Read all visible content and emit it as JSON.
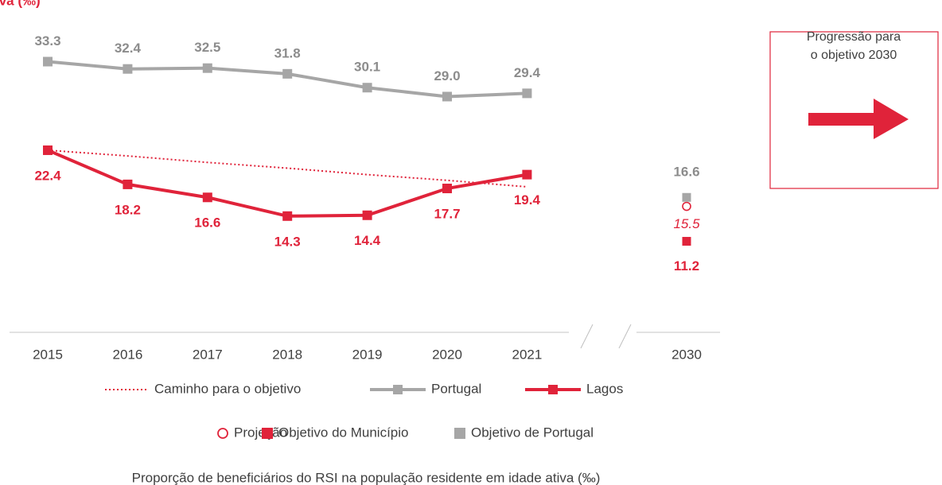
{
  "chart_data": {
    "type": "line",
    "title": "iva (‰)",
    "caption": "Proporção de beneficiários do RSI na população residente em idade ativa (‰)",
    "annotation": [
      "Progressão para",
      "o objetivo 2030"
    ],
    "categories": [
      "2015",
      "2016",
      "2017",
      "2018",
      "2019",
      "2020",
      "2021",
      "2030"
    ],
    "ylim": [
      0,
      40
    ],
    "series": [
      {
        "name": "Caminho para o objetivo",
        "color": "#e0233a",
        "style": "dotted",
        "values": [
          22.4,
          21.7,
          20.9,
          20.2,
          19.4,
          18.7,
          17.9,
          null
        ]
      },
      {
        "name": "Portugal",
        "color": "#a6a6a6",
        "label_color": "#8c8c8c",
        "style": "line",
        "values": [
          33.3,
          32.4,
          32.5,
          31.8,
          30.1,
          29.0,
          29.4,
          null
        ],
        "value_labels": [
          "33.3",
          "32.4",
          "32.5",
          "31.8",
          "30.1",
          "29.0",
          "29.4",
          null
        ]
      },
      {
        "name": "Lagos",
        "color": "#e0233a",
        "style": "line",
        "values": [
          22.4,
          18.2,
          16.6,
          14.3,
          14.4,
          17.7,
          19.4,
          null
        ],
        "value_labels": [
          "22.4",
          "18.2",
          "16.6",
          "14.3",
          "14.4",
          "17.7",
          "19.4",
          null
        ]
      },
      {
        "name": "Projeção",
        "color": "#e0233a",
        "style": "circle",
        "values": [
          null,
          null,
          null,
          null,
          null,
          null,
          null,
          15.5
        ],
        "value_labels": [
          null,
          null,
          null,
          null,
          null,
          null,
          null,
          "15.5"
        ]
      },
      {
        "name": "Objetivo do Município",
        "color": "#e0233a",
        "style": "square",
        "values": [
          null,
          null,
          null,
          null,
          null,
          null,
          null,
          11.2
        ],
        "value_labels": [
          null,
          null,
          null,
          null,
          null,
          null,
          null,
          "11.2"
        ]
      },
      {
        "name": "Objetivo de Portugal",
        "color": "#a6a6a6",
        "label_color": "#8c8c8c",
        "style": "square",
        "values": [
          null,
          null,
          null,
          null,
          null,
          null,
          null,
          16.6
        ],
        "value_labels": [
          null,
          null,
          null,
          null,
          null,
          null,
          null,
          "16.6"
        ]
      }
    ]
  }
}
